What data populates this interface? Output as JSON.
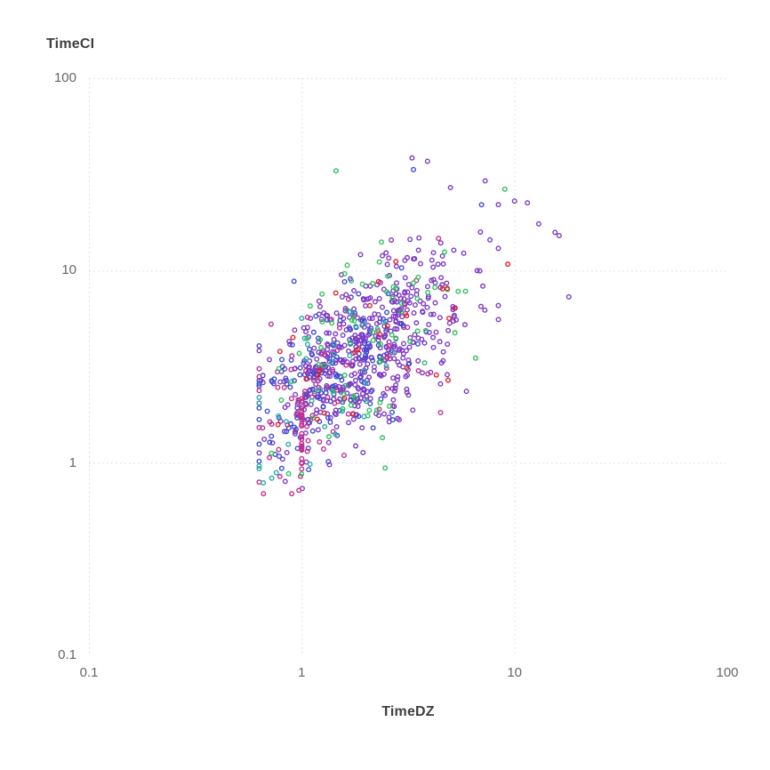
{
  "chart_data": {
    "type": "scatter",
    "title": "",
    "xlabel": "TimeDZ",
    "ylabel": "TimeCI",
    "x_scale": "log",
    "y_scale": "log",
    "xlim": [
      0.1,
      100
    ],
    "ylim": [
      0.1,
      100
    ],
    "x_ticks": {
      "values": [
        0.1,
        1,
        10,
        100
      ],
      "labels": [
        "0.1",
        "1",
        "10",
        "100"
      ]
    },
    "y_ticks": {
      "values": [
        0.1,
        1,
        10,
        100
      ],
      "labels": [
        "0.1",
        "1",
        "10",
        "100"
      ]
    },
    "grid": {
      "style": "dotted",
      "color": "#dbdbdb"
    },
    "legend": "none",
    "marker": {
      "shape": "ring",
      "radius_px": 2.3,
      "stroke_px": 1.4,
      "fill": "none"
    },
    "approx_point_count": 900,
    "seed": 1337,
    "series": [
      {
        "name": "purple",
        "color": "#7d3ac6",
        "count": 480,
        "log_center": [
          0.33,
          0.6
        ],
        "log_sigma": [
          0.22,
          0.24
        ],
        "rho": 0.6
      },
      {
        "name": "blue",
        "color": "#3b4cd1",
        "count": 150,
        "log_center": [
          0.1,
          0.4
        ],
        "log_sigma": [
          0.2,
          0.24
        ],
        "rho": 0.6
      },
      {
        "name": "magenta",
        "color": "#c22e92",
        "count": 85,
        "log_center": [
          0.12,
          0.38
        ],
        "log_sigma": [
          0.22,
          0.26
        ],
        "rho": 0.55
      },
      {
        "name": "green",
        "color": "#2fc25b",
        "count": 72,
        "log_center": [
          0.28,
          0.6
        ],
        "log_sigma": [
          0.25,
          0.3
        ],
        "rho": 0.5
      },
      {
        "name": "teal",
        "color": "#2aa8a8",
        "count": 40,
        "log_center": [
          0.1,
          0.4
        ],
        "log_sigma": [
          0.2,
          0.24
        ],
        "rho": 0.55
      },
      {
        "name": "red",
        "color": "#e02128",
        "count": 25,
        "log_center": [
          0.3,
          0.55
        ],
        "log_sigma": [
          0.27,
          0.28
        ],
        "rho": 0.5
      }
    ],
    "streak": {
      "series": "magenta",
      "x": 1.0,
      "count": 26,
      "log_y_range": [
        -0.03,
        0.42
      ]
    },
    "feature_points": [
      {
        "x": 3.3,
        "y": 38.5,
        "series": "purple"
      },
      {
        "x": 3.9,
        "y": 37.0,
        "series": "purple"
      },
      {
        "x": 3.35,
        "y": 33.5,
        "series": "blue"
      },
      {
        "x": 1.45,
        "y": 33.0,
        "series": "green"
      },
      {
        "x": 5.0,
        "y": 27.0,
        "series": "purple"
      },
      {
        "x": 9.0,
        "y": 26.5,
        "series": "green"
      },
      {
        "x": 11.5,
        "y": 22.5,
        "series": "purple"
      },
      {
        "x": 7.0,
        "y": 22.0,
        "series": "blue"
      },
      {
        "x": 10.0,
        "y": 23.0,
        "series": "purple"
      },
      {
        "x": 13.0,
        "y": 17.5,
        "series": "purple"
      },
      {
        "x": 16.2,
        "y": 15.2,
        "series": "purple"
      },
      {
        "x": 15.5,
        "y": 15.8,
        "series": "purple"
      },
      {
        "x": 9.3,
        "y": 10.8,
        "series": "red"
      },
      {
        "x": 18.0,
        "y": 7.3,
        "series": "purple"
      },
      {
        "x": 0.92,
        "y": 8.8,
        "series": "blue"
      },
      {
        "x": 0.79,
        "y": 3.8,
        "series": "red"
      },
      {
        "x": 0.76,
        "y": 0.89,
        "series": "teal"
      },
      {
        "x": 0.79,
        "y": 0.85,
        "series": "magenta"
      },
      {
        "x": 1.0,
        "y": 0.93,
        "series": "magenta"
      },
      {
        "x": 1.35,
        "y": 0.98,
        "series": "purple"
      },
      {
        "x": 0.97,
        "y": 0.72,
        "series": "magenta"
      }
    ]
  }
}
